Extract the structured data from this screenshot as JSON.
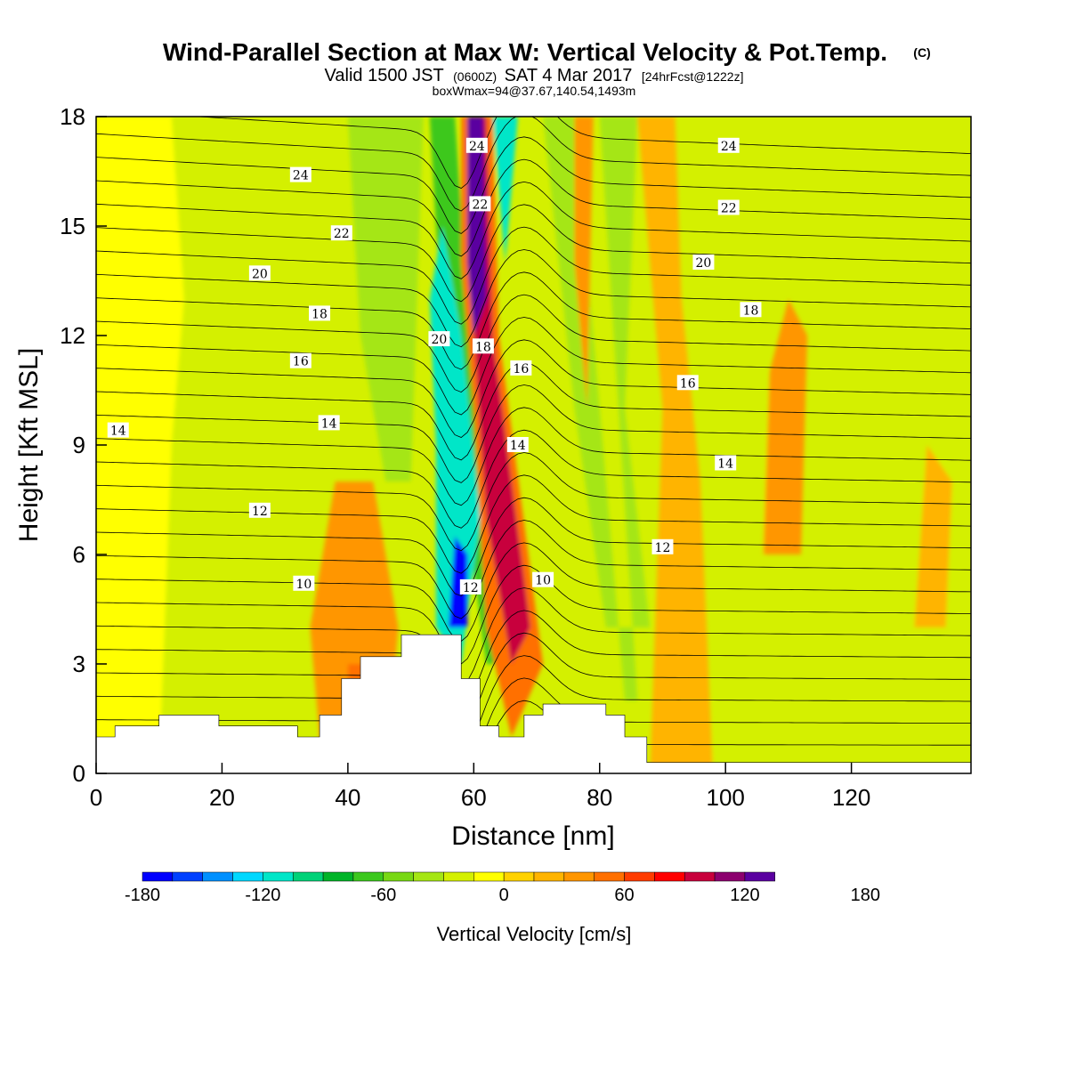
{
  "title": {
    "main": "Wind-Parallel Section at Max W: Vertical Velocity & Pot.Temp.",
    "main_sup": "(C)",
    "line2_a": "Valid 1500 JST",
    "line2_b": "(0600Z)",
    "line2_c": "SAT 4 Mar 2017",
    "line2_d": "[24hrFcst@1222z]",
    "line3": "boxWmax=94@37.67,140.54,1493m"
  },
  "chart_data": {
    "type": "heatmap",
    "xlabel": "Distance [nm]",
    "ylabel": "Height [Kft MSL]",
    "xlim": [
      0,
      139
    ],
    "ylim": [
      0,
      18
    ],
    "x_ticks": [
      0,
      20,
      40,
      60,
      80,
      100,
      120
    ],
    "y_ticks": [
      0,
      3,
      6,
      9,
      12,
      15,
      18
    ],
    "colorbar": {
      "title": "Vertical Velocity [cm/s]",
      "levels": [
        -180,
        -165,
        -150,
        -135,
        -120,
        -105,
        -90,
        -75,
        -60,
        -45,
        -30,
        -15,
        0,
        15,
        30,
        45,
        60,
        75,
        90,
        105,
        120,
        135,
        150,
        165,
        180,
        195,
        210
      ],
      "colors": [
        "#0000ff",
        "#0040ff",
        "#0090ff",
        "#00d8ff",
        "#00e6c8",
        "#00d278",
        "#00b428",
        "#3cc81e",
        "#78d814",
        "#a5e614",
        "#d4f000",
        "#ffff00",
        "#ffd200",
        "#ffb400",
        "#ff9600",
        "#ff7000",
        "#ff3c00",
        "#ff0000",
        "#c8003c",
        "#8c006e",
        "#5a00a0"
      ],
      "tick_labels": [
        "-180",
        "-120",
        "-60",
        "0",
        "60",
        "120",
        "180"
      ],
      "tick_values": [
        -180,
        -120,
        -60,
        0,
        60,
        120,
        180
      ]
    },
    "vertical_velocity_features": [
      {
        "x_center": 60.5,
        "z_range": [
          12,
          18
        ],
        "value": 170
      },
      {
        "x_center": 68,
        "z_range": [
          3,
          11
        ],
        "value": 80
      },
      {
        "x_center": 57,
        "z_range": [
          4,
          12
        ],
        "value": -120
      },
      {
        "x_center": 58,
        "z_range": [
          4,
          6
        ],
        "value": -170
      },
      {
        "x_center": 65,
        "z_range": [
          15,
          18
        ],
        "value": -110
      },
      {
        "x_center": 78,
        "z_range": [
          3,
          18
        ],
        "value": -45
      },
      {
        "x_center": 42,
        "z_range": [
          3,
          7
        ],
        "value": 50
      },
      {
        "x_center": 110,
        "z_range": [
          6,
          12
        ],
        "value": 30
      }
    ],
    "theta_contours": [
      {
        "label": "10",
        "level": 10
      },
      {
        "label": "12",
        "level": 12
      },
      {
        "label": "14",
        "level": 14
      },
      {
        "label": "16",
        "level": 16
      },
      {
        "label": "18",
        "level": 18
      },
      {
        "label": "20",
        "level": 20
      },
      {
        "label": "22",
        "level": 22
      },
      {
        "label": "24",
        "level": 24
      }
    ],
    "contour_labels": [
      {
        "text": "14",
        "x": 3.5,
        "z": 9.4
      },
      {
        "text": "12",
        "x": 26,
        "z": 7.2
      },
      {
        "text": "10",
        "x": 33,
        "z": 5.2
      },
      {
        "text": "14",
        "x": 37,
        "z": 9.6
      },
      {
        "text": "16",
        "x": 32.5,
        "z": 11.3
      },
      {
        "text": "18",
        "x": 35.5,
        "z": 12.6
      },
      {
        "text": "20",
        "x": 26,
        "z": 13.7
      },
      {
        "text": "22",
        "x": 39,
        "z": 14.8
      },
      {
        "text": "24",
        "x": 32.5,
        "z": 16.4
      },
      {
        "text": "20",
        "x": 54.5,
        "z": 11.9
      },
      {
        "text": "12",
        "x": 59.5,
        "z": 5.1
      },
      {
        "text": "24",
        "x": 60.5,
        "z": 17.2
      },
      {
        "text": "22",
        "x": 61,
        "z": 15.6
      },
      {
        "text": "18",
        "x": 61.5,
        "z": 11.7
      },
      {
        "text": "16",
        "x": 67.5,
        "z": 11.1
      },
      {
        "text": "14",
        "x": 67,
        "z": 9.0
      },
      {
        "text": "10",
        "x": 71,
        "z": 5.3
      },
      {
        "text": "12",
        "x": 90,
        "z": 6.2
      },
      {
        "text": "16",
        "x": 94,
        "z": 10.7
      },
      {
        "text": "14",
        "x": 100,
        "z": 8.5
      },
      {
        "text": "18",
        "x": 104,
        "z": 12.7
      },
      {
        "text": "20",
        "x": 96.5,
        "z": 14.0
      },
      {
        "text": "22",
        "x": 100.5,
        "z": 15.5
      },
      {
        "text": "24",
        "x": 100.5,
        "z": 17.2
      }
    ],
    "terrain": {
      "x": [
        0,
        3,
        3,
        10,
        10,
        19.5,
        19.5,
        32,
        32,
        35.5,
        35.5,
        39,
        39,
        42,
        42,
        48.5,
        48.5,
        58,
        58,
        61,
        61,
        64,
        64,
        68,
        68,
        71,
        71,
        81,
        81,
        84,
        84,
        87.5,
        87.5,
        139
      ],
      "z": [
        1.0,
        1.0,
        1.3,
        1.3,
        1.6,
        1.6,
        1.3,
        1.3,
        1.0,
        1.0,
        1.6,
        1.6,
        2.6,
        2.6,
        3.2,
        3.2,
        3.8,
        3.8,
        2.6,
        2.6,
        1.3,
        1.3,
        1.0,
        1.0,
        1.6,
        1.6,
        1.9,
        1.9,
        1.6,
        1.6,
        1.0,
        1.0,
        0.3,
        0.3
      ]
    }
  }
}
